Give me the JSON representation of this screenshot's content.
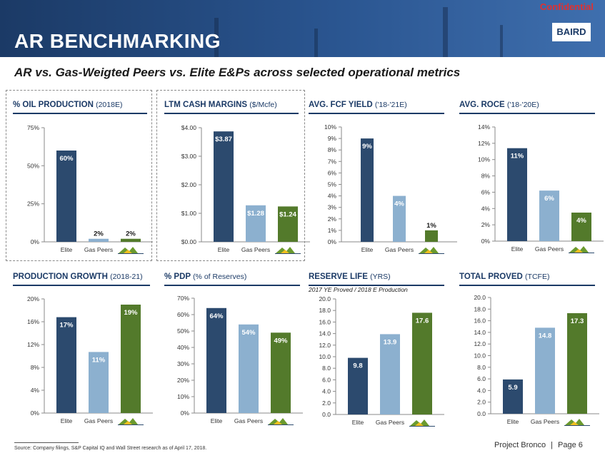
{
  "header": {
    "title": "AR BENCHMARKING",
    "confidential": "Confidential",
    "logo": "BAIRD"
  },
  "subtitle": "AR vs. Gas-Weigted Peers vs. Elite E&Ps across selected operational metrics",
  "footer": {
    "source": "Source: Company filings, S&P Capital IQ and Wall Street research as of April 17, 2018.",
    "project": "Project Bronco",
    "separator": "|",
    "page": "Page 6"
  },
  "colors": {
    "elite": "#2c4a6e",
    "peers": "#8cb0cf",
    "antero": "#537a2b",
    "title": "#1b3a66"
  },
  "chart_data": [
    {
      "type": "bar",
      "title": "% OIL PRODUCTION",
      "title_sub": "(2018E)",
      "categories": [
        "Elite",
        "Gas Peers",
        "Antero"
      ],
      "values": [
        60,
        2,
        2
      ],
      "labels": [
        "60%",
        "2%",
        "2%"
      ],
      "ylim": [
        0,
        75
      ],
      "ticks": [
        0,
        25,
        50,
        75
      ],
      "tick_labels": [
        "0%",
        "25%",
        "50%",
        "75%"
      ],
      "grid": false
    },
    {
      "type": "bar",
      "title": "LTM CASH MARGINS",
      "title_sub": "($/Mcfe)",
      "categories": [
        "Elite",
        "Gas Peers",
        "Antero"
      ],
      "values": [
        3.87,
        1.28,
        1.24
      ],
      "labels": [
        "$3.87",
        "$1.28",
        "$1.24"
      ],
      "ylim": [
        0,
        4
      ],
      "ticks": [
        0,
        1,
        2,
        3,
        4
      ],
      "tick_labels": [
        "$0.00",
        "$1.00",
        "$2.00",
        "$3.00",
        "$4.00"
      ],
      "grid": false
    },
    {
      "type": "bar",
      "title": "AVG. FCF YIELD",
      "title_sub": "('18-'21E)",
      "categories": [
        "Elite",
        "Gas Peers",
        "Antero"
      ],
      "values": [
        9,
        4,
        1
      ],
      "labels": [
        "9%",
        "4%",
        "1%"
      ],
      "ylim": [
        0,
        10
      ],
      "ticks": [
        0,
        1,
        2,
        3,
        4,
        5,
        6,
        7,
        8,
        9,
        10
      ],
      "tick_labels": [
        "0%",
        "1%",
        "2%",
        "3%",
        "4%",
        "5%",
        "6%",
        "7%",
        "8%",
        "9%",
        "10%"
      ],
      "grid": false
    },
    {
      "type": "bar",
      "title": "AVG. ROCE",
      "title_sub": "('18-'20E)",
      "categories": [
        "Elite",
        "Gas Peers",
        "Antero"
      ],
      "values": [
        11.4,
        6.2,
        3.5
      ],
      "labels": [
        "11%",
        "6%",
        "4%"
      ],
      "ylim": [
        0,
        14
      ],
      "ticks": [
        0,
        2,
        4,
        6,
        8,
        10,
        12,
        14
      ],
      "tick_labels": [
        "0%",
        "2%",
        "4%",
        "6%",
        "8%",
        "10%",
        "12%",
        "14%"
      ],
      "grid": false
    },
    {
      "type": "bar",
      "title": "PRODUCTION GROWTH",
      "title_sub": "(2018-21)",
      "categories": [
        "Elite",
        "Gas Peers",
        "Antero"
      ],
      "values": [
        16.8,
        10.7,
        19
      ],
      "labels": [
        "17%",
        "11%",
        "19%"
      ],
      "ylim": [
        0,
        20
      ],
      "ticks": [
        0,
        4,
        8,
        12,
        16,
        20
      ],
      "tick_labels": [
        "0%",
        "4%",
        "8%",
        "12%",
        "16%",
        "20%"
      ],
      "grid": false
    },
    {
      "type": "bar",
      "title": "% PDP",
      "title_sub": "(% of Reserves)",
      "categories": [
        "Elite",
        "Gas Peers",
        "Antero"
      ],
      "values": [
        64,
        54,
        49
      ],
      "labels": [
        "64%",
        "54%",
        "49%"
      ],
      "ylim": [
        0,
        70
      ],
      "ticks": [
        0,
        10,
        20,
        30,
        40,
        50,
        60,
        70
      ],
      "tick_labels": [
        "0%",
        "10%",
        "20%",
        "30%",
        "40%",
        "50%",
        "60%",
        "70%"
      ],
      "grid": false
    },
    {
      "type": "bar",
      "title": "RESERVE LIFE",
      "title_sub": "(YRS)",
      "note": "2017 YE Proved / 2018 E Production",
      "categories": [
        "Elite",
        "Gas Peers",
        "Antero"
      ],
      "values": [
        9.8,
        13.9,
        17.6
      ],
      "labels": [
        "9.8",
        "13.9",
        "17.6"
      ],
      "ylim": [
        0,
        20
      ],
      "ticks": [
        0,
        2,
        4,
        6,
        8,
        10,
        12,
        14,
        16,
        18,
        20
      ],
      "tick_labels": [
        "0.0",
        "2.0",
        "4.0",
        "6.0",
        "8.0",
        "10.0",
        "12.0",
        "14.0",
        "16.0",
        "18.0",
        "20.0"
      ],
      "grid": false
    },
    {
      "type": "bar",
      "title": "TOTAL PROVED",
      "title_sub": "(TCFE)",
      "categories": [
        "Elite",
        "Gas Peers",
        "Antero"
      ],
      "values": [
        5.9,
        14.8,
        17.3
      ],
      "labels": [
        "5.9",
        "14.8",
        "17.3"
      ],
      "ylim": [
        0,
        20
      ],
      "ticks": [
        0,
        2,
        4,
        6,
        8,
        10,
        12,
        14,
        16,
        18,
        20
      ],
      "tick_labels": [
        "0.0",
        "2.0",
        "4.0",
        "6.0",
        "8.0",
        "10.0",
        "12.0",
        "14.0",
        "16.0",
        "18.0",
        "20.0"
      ],
      "grid": false
    }
  ]
}
